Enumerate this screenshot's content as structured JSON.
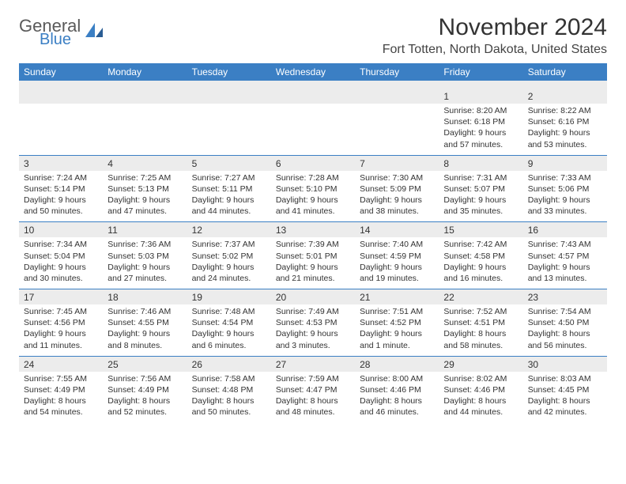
{
  "brand": {
    "top": "General",
    "bottom": "Blue"
  },
  "title": "November 2024",
  "location": "Fort Totten, North Dakota, United States",
  "colors": {
    "header_bg": "#3b7fc4",
    "header_text": "#ffffff",
    "daynum_bg": "#ececec",
    "border": "#3b7fc4",
    "text": "#333333",
    "logo_gray": "#5a5a5a",
    "logo_blue": "#3b7fc4"
  },
  "day_names": [
    "Sunday",
    "Monday",
    "Tuesday",
    "Wednesday",
    "Thursday",
    "Friday",
    "Saturday"
  ],
  "weeks": [
    {
      "nums": [
        "",
        "",
        "",
        "",
        "",
        "1",
        "2"
      ],
      "info": [
        "",
        "",
        "",
        "",
        "",
        "Sunrise: 8:20 AM\nSunset: 6:18 PM\nDaylight: 9 hours and 57 minutes.",
        "Sunrise: 8:22 AM\nSunset: 6:16 PM\nDaylight: 9 hours and 53 minutes."
      ]
    },
    {
      "nums": [
        "3",
        "4",
        "5",
        "6",
        "7",
        "8",
        "9"
      ],
      "info": [
        "Sunrise: 7:24 AM\nSunset: 5:14 PM\nDaylight: 9 hours and 50 minutes.",
        "Sunrise: 7:25 AM\nSunset: 5:13 PM\nDaylight: 9 hours and 47 minutes.",
        "Sunrise: 7:27 AM\nSunset: 5:11 PM\nDaylight: 9 hours and 44 minutes.",
        "Sunrise: 7:28 AM\nSunset: 5:10 PM\nDaylight: 9 hours and 41 minutes.",
        "Sunrise: 7:30 AM\nSunset: 5:09 PM\nDaylight: 9 hours and 38 minutes.",
        "Sunrise: 7:31 AM\nSunset: 5:07 PM\nDaylight: 9 hours and 35 minutes.",
        "Sunrise: 7:33 AM\nSunset: 5:06 PM\nDaylight: 9 hours and 33 minutes."
      ]
    },
    {
      "nums": [
        "10",
        "11",
        "12",
        "13",
        "14",
        "15",
        "16"
      ],
      "info": [
        "Sunrise: 7:34 AM\nSunset: 5:04 PM\nDaylight: 9 hours and 30 minutes.",
        "Sunrise: 7:36 AM\nSunset: 5:03 PM\nDaylight: 9 hours and 27 minutes.",
        "Sunrise: 7:37 AM\nSunset: 5:02 PM\nDaylight: 9 hours and 24 minutes.",
        "Sunrise: 7:39 AM\nSunset: 5:01 PM\nDaylight: 9 hours and 21 minutes.",
        "Sunrise: 7:40 AM\nSunset: 4:59 PM\nDaylight: 9 hours and 19 minutes.",
        "Sunrise: 7:42 AM\nSunset: 4:58 PM\nDaylight: 9 hours and 16 minutes.",
        "Sunrise: 7:43 AM\nSunset: 4:57 PM\nDaylight: 9 hours and 13 minutes."
      ]
    },
    {
      "nums": [
        "17",
        "18",
        "19",
        "20",
        "21",
        "22",
        "23"
      ],
      "info": [
        "Sunrise: 7:45 AM\nSunset: 4:56 PM\nDaylight: 9 hours and 11 minutes.",
        "Sunrise: 7:46 AM\nSunset: 4:55 PM\nDaylight: 9 hours and 8 minutes.",
        "Sunrise: 7:48 AM\nSunset: 4:54 PM\nDaylight: 9 hours and 6 minutes.",
        "Sunrise: 7:49 AM\nSunset: 4:53 PM\nDaylight: 9 hours and 3 minutes.",
        "Sunrise: 7:51 AM\nSunset: 4:52 PM\nDaylight: 9 hours and 1 minute.",
        "Sunrise: 7:52 AM\nSunset: 4:51 PM\nDaylight: 8 hours and 58 minutes.",
        "Sunrise: 7:54 AM\nSunset: 4:50 PM\nDaylight: 8 hours and 56 minutes."
      ]
    },
    {
      "nums": [
        "24",
        "25",
        "26",
        "27",
        "28",
        "29",
        "30"
      ],
      "info": [
        "Sunrise: 7:55 AM\nSunset: 4:49 PM\nDaylight: 8 hours and 54 minutes.",
        "Sunrise: 7:56 AM\nSunset: 4:49 PM\nDaylight: 8 hours and 52 minutes.",
        "Sunrise: 7:58 AM\nSunset: 4:48 PM\nDaylight: 8 hours and 50 minutes.",
        "Sunrise: 7:59 AM\nSunset: 4:47 PM\nDaylight: 8 hours and 48 minutes.",
        "Sunrise: 8:00 AM\nSunset: 4:46 PM\nDaylight: 8 hours and 46 minutes.",
        "Sunrise: 8:02 AM\nSunset: 4:46 PM\nDaylight: 8 hours and 44 minutes.",
        "Sunrise: 8:03 AM\nSunset: 4:45 PM\nDaylight: 8 hours and 42 minutes."
      ]
    }
  ]
}
